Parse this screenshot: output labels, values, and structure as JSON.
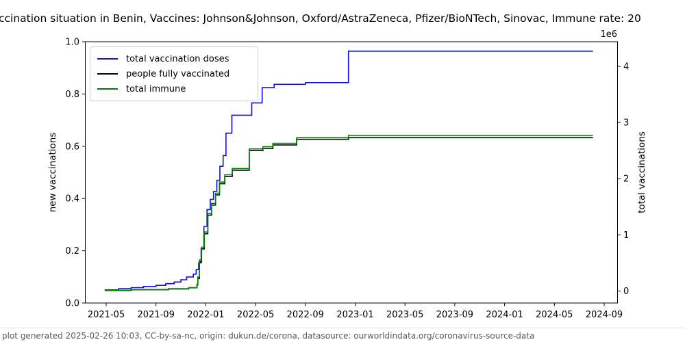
{
  "title": "ccination situation in Benin, Vaccines: Johnson&Johnson, Oxford/AstraZeneca, Pfizer/BioNTech, Sinovac, Immune rate: 20",
  "footer": "plot generated 2025-02-26 10:03, CC-by-sa-nc, origin: dukun.de/corona, datasource: ourworldindata.org/coronavirus-source-data",
  "chart_data": {
    "type": "line",
    "step": true,
    "grid": false,
    "title": "ccination situation in Benin, Vaccines: Johnson&Johnson, Oxford/AstraZeneca, Pfizer/BioNTech, Sinovac, Immune rate: 20",
    "x_ticks": [
      "2021-05",
      "2021-09",
      "2022-01",
      "2022-05",
      "2022-09",
      "2023-01",
      "2023-05",
      "2023-09",
      "2024-01",
      "2024-05",
      "2024-09"
    ],
    "left_axis": {
      "label": "new vaccinations",
      "ticks": [
        "0.0",
        "0.2",
        "0.4",
        "0.6",
        "0.8",
        "1.0"
      ],
      "lim": [
        0.0,
        1.0
      ]
    },
    "right_axis": {
      "label": "total vaccinations",
      "offset_text": "1e6",
      "ticks": [
        "0",
        "1",
        "2",
        "3",
        "4"
      ],
      "unit_multiplier": 1000000
    },
    "legend": {
      "position": "upper left"
    },
    "y_value_unit": "millions (right axis)",
    "series": [
      {
        "name": "total vaccination doses",
        "color": "#0d0de0",
        "points": [
          [
            "2021-04-28",
            0.02
          ],
          [
            "2021-06-01",
            0.04
          ],
          [
            "2021-07-01",
            0.06
          ],
          [
            "2021-08-01",
            0.08
          ],
          [
            "2021-09-01",
            0.1
          ],
          [
            "2021-09-25",
            0.13
          ],
          [
            "2021-10-15",
            0.16
          ],
          [
            "2021-11-01",
            0.2
          ],
          [
            "2021-11-15",
            0.25
          ],
          [
            "2021-12-01",
            0.3
          ],
          [
            "2021-12-08",
            0.38
          ],
          [
            "2021-12-14",
            0.5
          ],
          [
            "2021-12-20",
            0.75
          ],
          [
            "2021-12-27",
            1.15
          ],
          [
            "2022-01-04",
            1.45
          ],
          [
            "2022-01-12",
            1.63
          ],
          [
            "2022-01-20",
            1.77
          ],
          [
            "2022-01-28",
            1.97
          ],
          [
            "2022-02-05",
            2.22
          ],
          [
            "2022-02-13",
            2.41
          ],
          [
            "2022-02-20",
            2.81
          ],
          [
            "2022-03-04",
            3.13
          ],
          [
            "2022-04-22",
            3.35
          ],
          [
            "2022-05-17",
            3.62
          ],
          [
            "2022-06-16",
            3.68
          ],
          [
            "2022-09-01",
            3.71
          ],
          [
            "2022-12-15",
            4.27
          ],
          [
            "2024-08-04",
            4.27
          ]
        ]
      },
      {
        "name": "people fully vaccinated",
        "color": "#000000",
        "points": [
          [
            "2021-04-28",
            0.008
          ],
          [
            "2021-07-01",
            0.022
          ],
          [
            "2021-10-01",
            0.037
          ],
          [
            "2021-11-20",
            0.057
          ],
          [
            "2021-12-10",
            0.11
          ],
          [
            "2021-12-12",
            0.22
          ],
          [
            "2021-12-16",
            0.52
          ],
          [
            "2021-12-21",
            0.75
          ],
          [
            "2021-12-28",
            1.02
          ],
          [
            "2022-01-06",
            1.35
          ],
          [
            "2022-01-15",
            1.53
          ],
          [
            "2022-01-25",
            1.71
          ],
          [
            "2022-02-04",
            1.91
          ],
          [
            "2022-02-17",
            2.04
          ],
          [
            "2022-03-05",
            2.15
          ],
          [
            "2022-04-16",
            2.5
          ],
          [
            "2022-05-19",
            2.54
          ],
          [
            "2022-06-13",
            2.6
          ],
          [
            "2022-08-10",
            2.7
          ],
          [
            "2022-12-15",
            2.73
          ],
          [
            "2024-08-04",
            2.73
          ]
        ]
      },
      {
        "name": "total immune",
        "color": "#008000",
        "points": [
          [
            "2021-04-28",
            0.012
          ],
          [
            "2021-07-01",
            0.025
          ],
          [
            "2021-10-01",
            0.04
          ],
          [
            "2021-11-20",
            0.06
          ],
          [
            "2021-12-10",
            0.12
          ],
          [
            "2021-12-12",
            0.25
          ],
          [
            "2021-12-16",
            0.55
          ],
          [
            "2021-12-21",
            0.78
          ],
          [
            "2021-12-28",
            1.05
          ],
          [
            "2022-01-06",
            1.38
          ],
          [
            "2022-01-15",
            1.56
          ],
          [
            "2022-01-25",
            1.74
          ],
          [
            "2022-02-04",
            1.94
          ],
          [
            "2022-02-17",
            2.07
          ],
          [
            "2022-03-05",
            2.18
          ],
          [
            "2022-04-16",
            2.53
          ],
          [
            "2022-05-19",
            2.57
          ],
          [
            "2022-06-13",
            2.63
          ],
          [
            "2022-08-10",
            2.73
          ],
          [
            "2022-12-15",
            2.77
          ],
          [
            "2024-08-04",
            2.77
          ]
        ]
      }
    ]
  }
}
